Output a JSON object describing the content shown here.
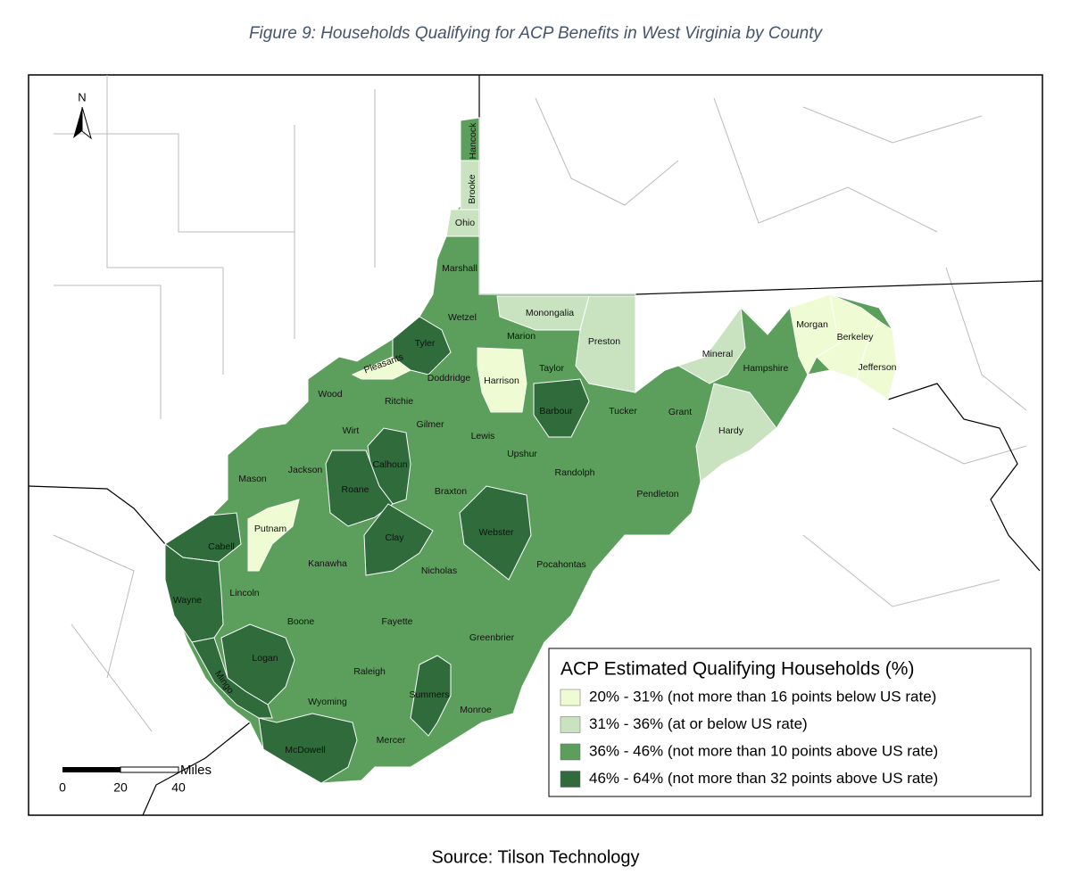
{
  "map": {
    "title": "Figure 9: Households Qualifying for ACP Benefits in West Virginia by County",
    "north": "N",
    "scale_bar": {
      "unit": "Miles",
      "ticks": [
        0,
        20,
        40
      ]
    },
    "legend": {
      "title": "ACP Estimated Qualifying Households (%)",
      "items": [
        {
          "label": "20% - 31% (not more than 16 points below US rate)",
          "color": "#effbd2",
          "counties": [
            "Pleasants",
            "Harrison",
            "Putnam",
            "Morgan",
            "Berkeley",
            "Jefferson"
          ]
        },
        {
          "label": "31% - 36% (at or below US rate)",
          "color": "#c9e3c1",
          "counties": [
            "Brooke",
            "Ohio",
            "Monongalia",
            "Preston",
            "Mineral",
            "Hardy"
          ]
        },
        {
          "label": "36% - 46% (not more than 10 points above US rate)",
          "color": "#5c9f5c",
          "counties": [
            "Hancock",
            "Marshall",
            "Wetzel",
            "Marion",
            "Taylor",
            "Doddridge",
            "Ritchie",
            "Wood",
            "Tucker",
            "Hampshire",
            "Grant",
            "Wirt",
            "Gilmer",
            "Lewis",
            "Upshur",
            "Jackson",
            "Mason",
            "Randolph",
            "Pendleton",
            "Braxton",
            "Kanawha",
            "Lincoln",
            "Nicholas",
            "Pocahontas",
            "Boone",
            "Fayette",
            "Greenbrier",
            "Raleigh",
            "Wyoming",
            "Monroe",
            "Mercer"
          ]
        },
        {
          "label": "46% - 64% (not more than 32 points above US rate)",
          "color": "#2f6b3b",
          "counties": [
            "Tyler",
            "Barbour",
            "Calhoun",
            "Roane",
            "Clay",
            "Webster",
            "Cabell",
            "Wayne",
            "Logan",
            "Mingo",
            "Summers",
            "McDowell"
          ]
        }
      ]
    },
    "source": "Source: Tilson Technology"
  }
}
